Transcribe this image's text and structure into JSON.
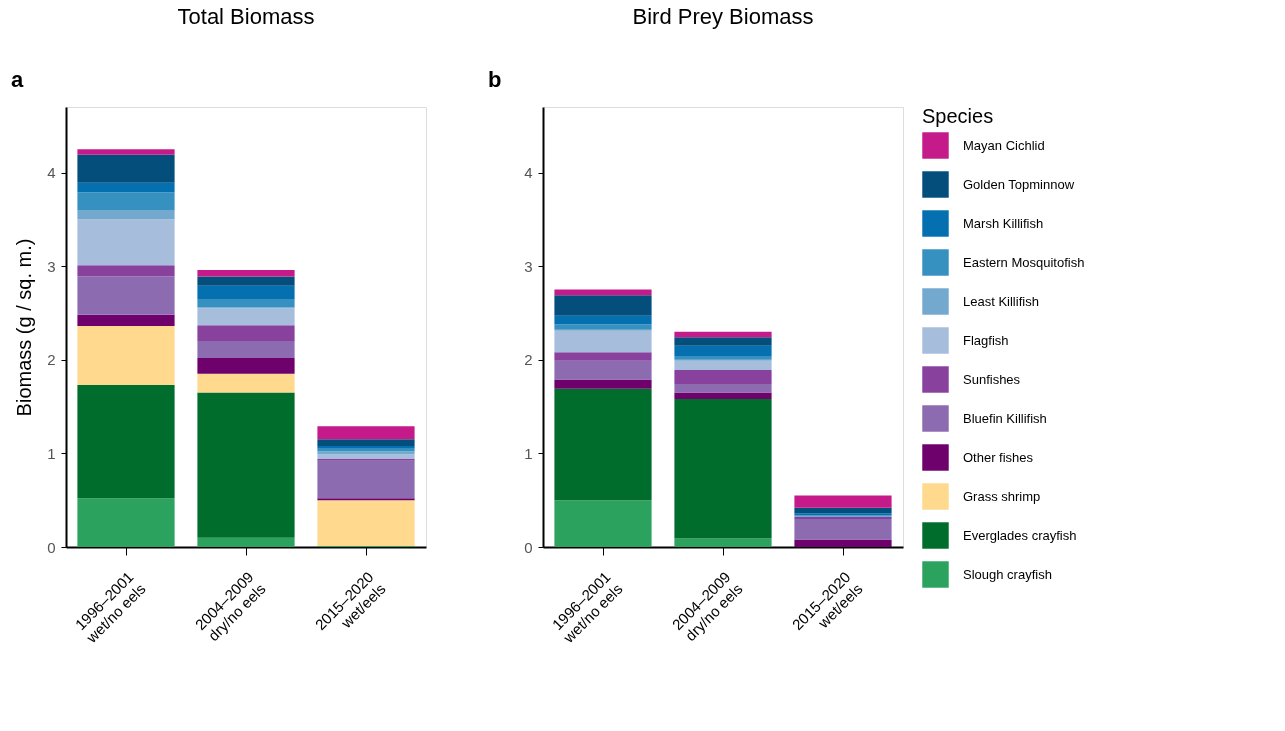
{
  "chart_data": [
    {
      "type": "bar",
      "title": "Total Biomass",
      "ylabel": "Biomass (g / sq. m.)",
      "annotations": [
        "a"
      ],
      "stacked": true,
      "legend": "right",
      "grid": false,
      "categories": [
        "1996–2001\nwet/no eels",
        "2004–2009\ndry/no eels",
        "2015–2020\nwet/eels"
      ],
      "ylim": [
        0,
        4.7
      ],
      "yticks": [
        0,
        1,
        2,
        3,
        4
      ],
      "series": [
        {
          "name": "Slough crayfish",
          "color": "#2ca25f",
          "values": [
            0.52,
            0.1,
            0.01
          ]
        },
        {
          "name": "Everglades crayfish",
          "color": "#006d2c",
          "values": [
            1.21,
            1.55,
            0
          ]
        },
        {
          "name": "Grass shrimp",
          "color": "#fed98e",
          "values": [
            0.63,
            0.2,
            0.49
          ]
        },
        {
          "name": "Other fishes",
          "color": "#6e016b",
          "values": [
            0.12,
            0.17,
            0.02
          ]
        },
        {
          "name": "Bluefin Killifish",
          "color": "#8c6bb1",
          "values": [
            0.41,
            0.18,
            0.4
          ]
        },
        {
          "name": "Sunfishes",
          "color": "#88419d",
          "values": [
            0.12,
            0.17,
            0.02
          ]
        },
        {
          "name": "Flagfish",
          "color": "#a6bddb",
          "values": [
            0.49,
            0.18,
            0.05
          ]
        },
        {
          "name": "Least Killifish",
          "color": "#74a9cf",
          "values": [
            0.1,
            0.01,
            0.03
          ]
        },
        {
          "name": "Eastern Mosquitofish",
          "color": "#3690c0",
          "values": [
            0.19,
            0.09,
            0.03
          ]
        },
        {
          "name": "Marsh Killifish",
          "color": "#0570b0",
          "values": [
            0.1,
            0.14,
            0.03
          ]
        },
        {
          "name": "Golden Topminnow",
          "color": "#034e7b",
          "values": [
            0.3,
            0.1,
            0.07
          ]
        },
        {
          "name": "Mayan  Cichlid",
          "color": "#c51b8a",
          "values": [
            0.06,
            0.07,
            0.14
          ]
        }
      ]
    },
    {
      "type": "bar",
      "title": "Bird Prey Biomass",
      "annotations": [
        "b"
      ],
      "stacked": true,
      "legend": "right",
      "legend_title": "Species",
      "grid": false,
      "categories": [
        "1996–2001\nwet/no eels",
        "2004–2009\ndry/no eels",
        "2015–2020\nwet/eels"
      ],
      "ylim": [
        0,
        4.7
      ],
      "yticks": [
        0,
        1,
        2,
        3,
        4
      ],
      "series": [
        {
          "name": "Slough crayfish",
          "color": "#2ca25f",
          "values": [
            0.5,
            0.09,
            0
          ]
        },
        {
          "name": "Everglades crayfish",
          "color": "#006d2c",
          "values": [
            1.19,
            1.49,
            0
          ]
        },
        {
          "name": "Grass shrimp",
          "color": "#fed98e",
          "values": [
            0,
            0,
            0
          ]
        },
        {
          "name": "Other fishes",
          "color": "#6e016b",
          "values": [
            0.1,
            0.07,
            0.08
          ]
        },
        {
          "name": "Bluefin Killifish",
          "color": "#8c6bb1",
          "values": [
            0.2,
            0.09,
            0.22
          ]
        },
        {
          "name": "Sunfishes",
          "color": "#88419d",
          "values": [
            0.09,
            0.15,
            0.02
          ]
        },
        {
          "name": "Flagfish",
          "color": "#a6bddb",
          "values": [
            0.23,
            0.1,
            0
          ]
        },
        {
          "name": "Least Killifish",
          "color": "#74a9cf",
          "values": [
            0.01,
            0.01,
            0.01
          ]
        },
        {
          "name": "Eastern Mosquitofish",
          "color": "#3690c0",
          "values": [
            0.06,
            0.04,
            0.01
          ]
        },
        {
          "name": "Marsh Killifish",
          "color": "#0570b0",
          "values": [
            0.09,
            0.11,
            0.02
          ]
        },
        {
          "name": "Golden Topminnow",
          "color": "#034e7b",
          "values": [
            0.22,
            0.09,
            0.06
          ]
        },
        {
          "name": "Mayan  Cichlid",
          "color": "#c51b8a",
          "values": [
            0.06,
            0.06,
            0.13
          ]
        }
      ]
    }
  ]
}
